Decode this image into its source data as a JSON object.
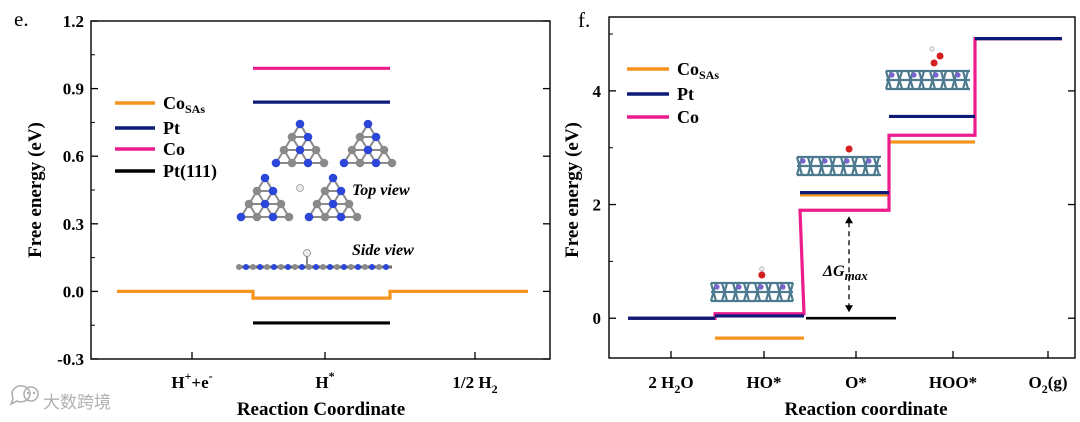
{
  "colors": {
    "orange": "#f7941d",
    "navy": "#0d1a78",
    "pink": "#ec1c8c",
    "black": "#000000",
    "atom_n": "#2b46d8",
    "atom_c": "#8a8a8a",
    "atom_pt": "#4e7a90",
    "atom_o": "#d42020",
    "watermark": "#b0b0b0"
  },
  "watermark": {
    "icon": "speech-bubble-icon",
    "text": "大数跨境"
  },
  "chart_data": [
    {
      "id": "e",
      "panel_label": "e.",
      "type": "line",
      "subtype": "free-energy-step-diagram",
      "xlabel": "Reaction Coordinate",
      "ylabel": "Free energy (eV)",
      "ylim": [
        -0.3,
        1.2
      ],
      "yticks": [
        -0.3,
        0.0,
        0.3,
        0.6,
        0.9,
        1.2
      ],
      "ytick_labels": [
        "-0.3",
        "0.0",
        "0.3",
        "0.6",
        "0.9",
        "1.2"
      ],
      "categories": [
        {
          "base": "H",
          "sup": "+",
          "mid": "+e",
          "sup2": "-",
          "sub": ""
        },
        {
          "base": "H",
          "sup": "*",
          "mid": "",
          "sup2": "",
          "sub": ""
        },
        {
          "base": "1/2 H",
          "sup": "",
          "mid": "",
          "sup2": "",
          "sub": "2"
        }
      ],
      "series": [
        {
          "name": "Co",
          "name_sub": "SAs",
          "color_key": "orange",
          "values": [
            0.0,
            -0.03,
            0.0
          ],
          "legend": true
        },
        {
          "name": "Pt",
          "name_sub": "",
          "color_key": "navy",
          "values": [
            null,
            0.84,
            null
          ],
          "legend": true
        },
        {
          "name": "Co",
          "name_sub": "",
          "color_key": "pink",
          "values": [
            null,
            0.99,
            null
          ],
          "legend": true
        },
        {
          "name": "Pt(111)",
          "name_sub": "",
          "color_key": "black",
          "values": [
            null,
            -0.14,
            null
          ],
          "legend": true
        }
      ],
      "legend_position": "top-left",
      "annotations": [
        "Top view",
        "Side view"
      ],
      "grid": false
    },
    {
      "id": "f",
      "panel_label": "f.",
      "type": "line",
      "subtype": "free-energy-step-diagram",
      "xlabel": "Reaction coordinate",
      "ylabel": "Free energy (eV)",
      "ylim": [
        -0.7,
        5.3
      ],
      "yticks": [
        0,
        2,
        4
      ],
      "ytick_labels": [
        "0",
        "2",
        "4"
      ],
      "categories": [
        {
          "base": "2 H",
          "sub": "2",
          "after": "O"
        },
        {
          "base": "HO*",
          "sub": "",
          "after": ""
        },
        {
          "base": "O*",
          "sub": "",
          "after": ""
        },
        {
          "base": "HOO*",
          "sub": "",
          "after": ""
        },
        {
          "base": "O",
          "sub": "2",
          "after": "(g)"
        }
      ],
      "series": [
        {
          "name": "Co",
          "name_sub": "SAs",
          "color_key": "orange",
          "values": [
            0.0,
            -0.35,
            2.17,
            3.1,
            4.92
          ]
        },
        {
          "name": "Pt",
          "name_sub": "",
          "color_key": "navy",
          "values": [
            0.0,
            0.04,
            2.21,
            3.55,
            4.92
          ]
        },
        {
          "name": "Co",
          "name_sub": "",
          "color_key": "pink",
          "values": [
            0.0,
            0.08,
            1.9,
            3.22,
            4.92
          ]
        }
      ],
      "extra_levels": [
        {
          "category_index": 2,
          "value": 0.0,
          "color_key": "black"
        }
      ],
      "annotation": {
        "text": "ΔG",
        "sub": "max",
        "from": 0.0,
        "to": 1.9,
        "category_index": 2
      },
      "legend_position": "top-left",
      "grid": false
    }
  ]
}
